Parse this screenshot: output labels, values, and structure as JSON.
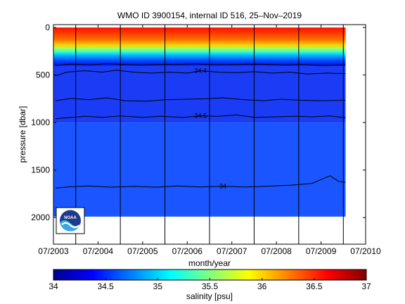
{
  "chart_data": [
    {
      "type": "heatmap",
      "title": "WMO ID 3900154, internal ID 516, 25–Nov–2019",
      "xlabel": "month/year",
      "ylabel": "pressure [dbar]",
      "x_ticks": [
        "07/2003",
        "07/2004",
        "07/2005",
        "07/2006",
        "07/2007",
        "07/2008",
        "07/2009",
        "07/2010"
      ],
      "y_ticks": [
        0,
        500,
        1000,
        1500,
        2000
      ],
      "xlim": [
        "2003-07",
        "2010-07"
      ],
      "ylim": [
        2280,
        -30
      ],
      "y_reversed": true,
      "profile_dates": [
        "2004-01",
        "2005-01",
        "2006-01",
        "2007-01",
        "2008-01",
        "2009-01",
        "2010-01"
      ],
      "series": [
        {
          "name": "34",
          "values": [
            [
              2003.55,
              1690
            ],
            [
              2003.9,
              1675
            ],
            [
              2004.3,
              1668
            ],
            [
              2004.8,
              1680
            ],
            [
              2005.3,
              1672
            ],
            [
              2005.8,
              1680
            ],
            [
              2006.3,
              1668
            ],
            [
              2006.8,
              1678
            ],
            [
              2007.3,
              1670
            ],
            [
              2007.8,
              1678
            ],
            [
              2008.3,
              1670
            ],
            [
              2008.8,
              1660
            ],
            [
              2009.3,
              1640
            ],
            [
              2009.7,
              1560
            ],
            [
              2009.9,
              1620
            ],
            [
              2010.05,
              1630
            ]
          ]
        },
        {
          "name": "34.5",
          "values": [
            [
              2003.55,
              960
            ],
            [
              2003.8,
              950
            ],
            [
              2004.2,
              935
            ],
            [
              2004.6,
              945
            ],
            [
              2005.0,
              930
            ],
            [
              2005.5,
              945
            ],
            [
              2005.9,
              935
            ],
            [
              2006.4,
              945
            ],
            [
              2006.8,
              930
            ],
            [
              2007.2,
              935
            ],
            [
              2007.6,
              920
            ],
            [
              2008.0,
              945
            ],
            [
              2008.5,
              940
            ],
            [
              2008.9,
              935
            ],
            [
              2009.3,
              940
            ],
            [
              2009.7,
              930
            ],
            [
              2010.05,
              950
            ]
          ]
        },
        {
          "name": "",
          "values": [
            [
              2003.55,
              770
            ],
            [
              2003.9,
              745
            ],
            [
              2004.3,
              760
            ],
            [
              2004.7,
              740
            ],
            [
              2005.1,
              770
            ],
            [
              2005.6,
              775
            ],
            [
              2006.0,
              760
            ],
            [
              2006.5,
              755
            ],
            [
              2006.9,
              750
            ],
            [
              2007.3,
              740
            ],
            [
              2007.8,
              760
            ],
            [
              2008.2,
              770
            ],
            [
              2008.6,
              755
            ],
            [
              2009.0,
              765
            ],
            [
              2009.5,
              770
            ],
            [
              2010.05,
              765
            ]
          ]
        },
        {
          "name": "34.4",
          "values": [
            [
              2003.55,
              510
            ],
            [
              2003.8,
              470
            ],
            [
              2004.2,
              455
            ],
            [
              2004.6,
              470
            ],
            [
              2004.9,
              450
            ],
            [
              2005.3,
              470
            ],
            [
              2005.7,
              480
            ],
            [
              2006.1,
              470
            ],
            [
              2006.5,
              480
            ],
            [
              2006.8,
              455
            ],
            [
              2007.2,
              470
            ],
            [
              2007.6,
              475
            ],
            [
              2008.0,
              465
            ],
            [
              2008.4,
              480
            ],
            [
              2008.8,
              470
            ],
            [
              2009.2,
              490
            ],
            [
              2009.6,
              480
            ],
            [
              2010.05,
              485
            ]
          ]
        },
        {
          "name": "",
          "values": [
            [
              2003.55,
              400
            ],
            [
              2003.9,
              385
            ],
            [
              2004.3,
              395
            ],
            [
              2004.7,
              380
            ],
            [
              2005.1,
              390
            ],
            [
              2005.5,
              395
            ],
            [
              2005.9,
              388
            ],
            [
              2006.3,
              390
            ],
            [
              2006.7,
              382
            ],
            [
              2007.1,
              392
            ],
            [
              2007.5,
              390
            ],
            [
              2007.9,
              385
            ],
            [
              2008.3,
              388
            ],
            [
              2008.7,
              395
            ],
            [
              2009.1,
              390
            ],
            [
              2009.5,
              400
            ],
            [
              2010.05,
              395
            ]
          ]
        }
      ],
      "colorbar": {
        "label": "salinity [psu]",
        "ticks": [
          "34",
          "34.5",
          "35",
          "35.5",
          "36",
          "36.5",
          "37"
        ],
        "range": [
          34,
          37
        ],
        "colors": [
          "#00008f",
          "#0000ff",
          "#0080ff",
          "#00ffff",
          "#80ff80",
          "#ffff00",
          "#ff8000",
          "#ff0000",
          "#800000"
        ]
      },
      "grid": false
    }
  ],
  "logo_text": "NOAA"
}
